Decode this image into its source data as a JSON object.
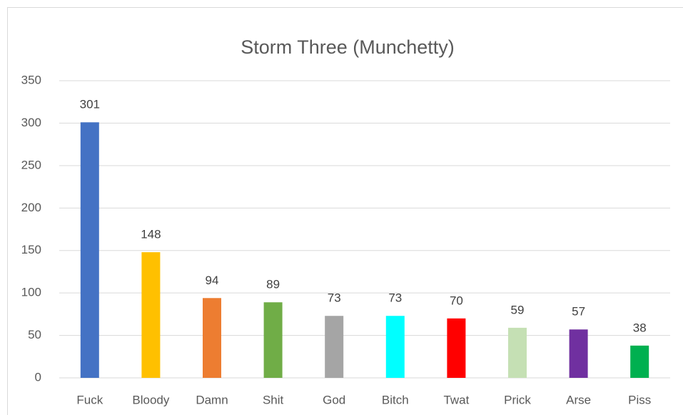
{
  "chart_data": {
    "type": "bar",
    "title": "Storm Three (Munchetty)",
    "categories": [
      "Fuck",
      "Bloody",
      "Damn",
      "Shit",
      "God",
      "Bitch",
      "Twat",
      "Prick",
      "Arse",
      "Piss"
    ],
    "values": [
      301,
      148,
      94,
      89,
      73,
      73,
      70,
      59,
      57,
      38
    ],
    "colors": [
      "#4472c4",
      "#ffc000",
      "#ed7d31",
      "#70ad47",
      "#a5a5a5",
      "#00ffff",
      "#ff0000",
      "#c5e0b4",
      "#7030a0",
      "#00b050"
    ],
    "ylim": [
      0,
      350
    ],
    "yticks": [
      0,
      50,
      100,
      150,
      200,
      250,
      300,
      350
    ],
    "grid": true
  }
}
